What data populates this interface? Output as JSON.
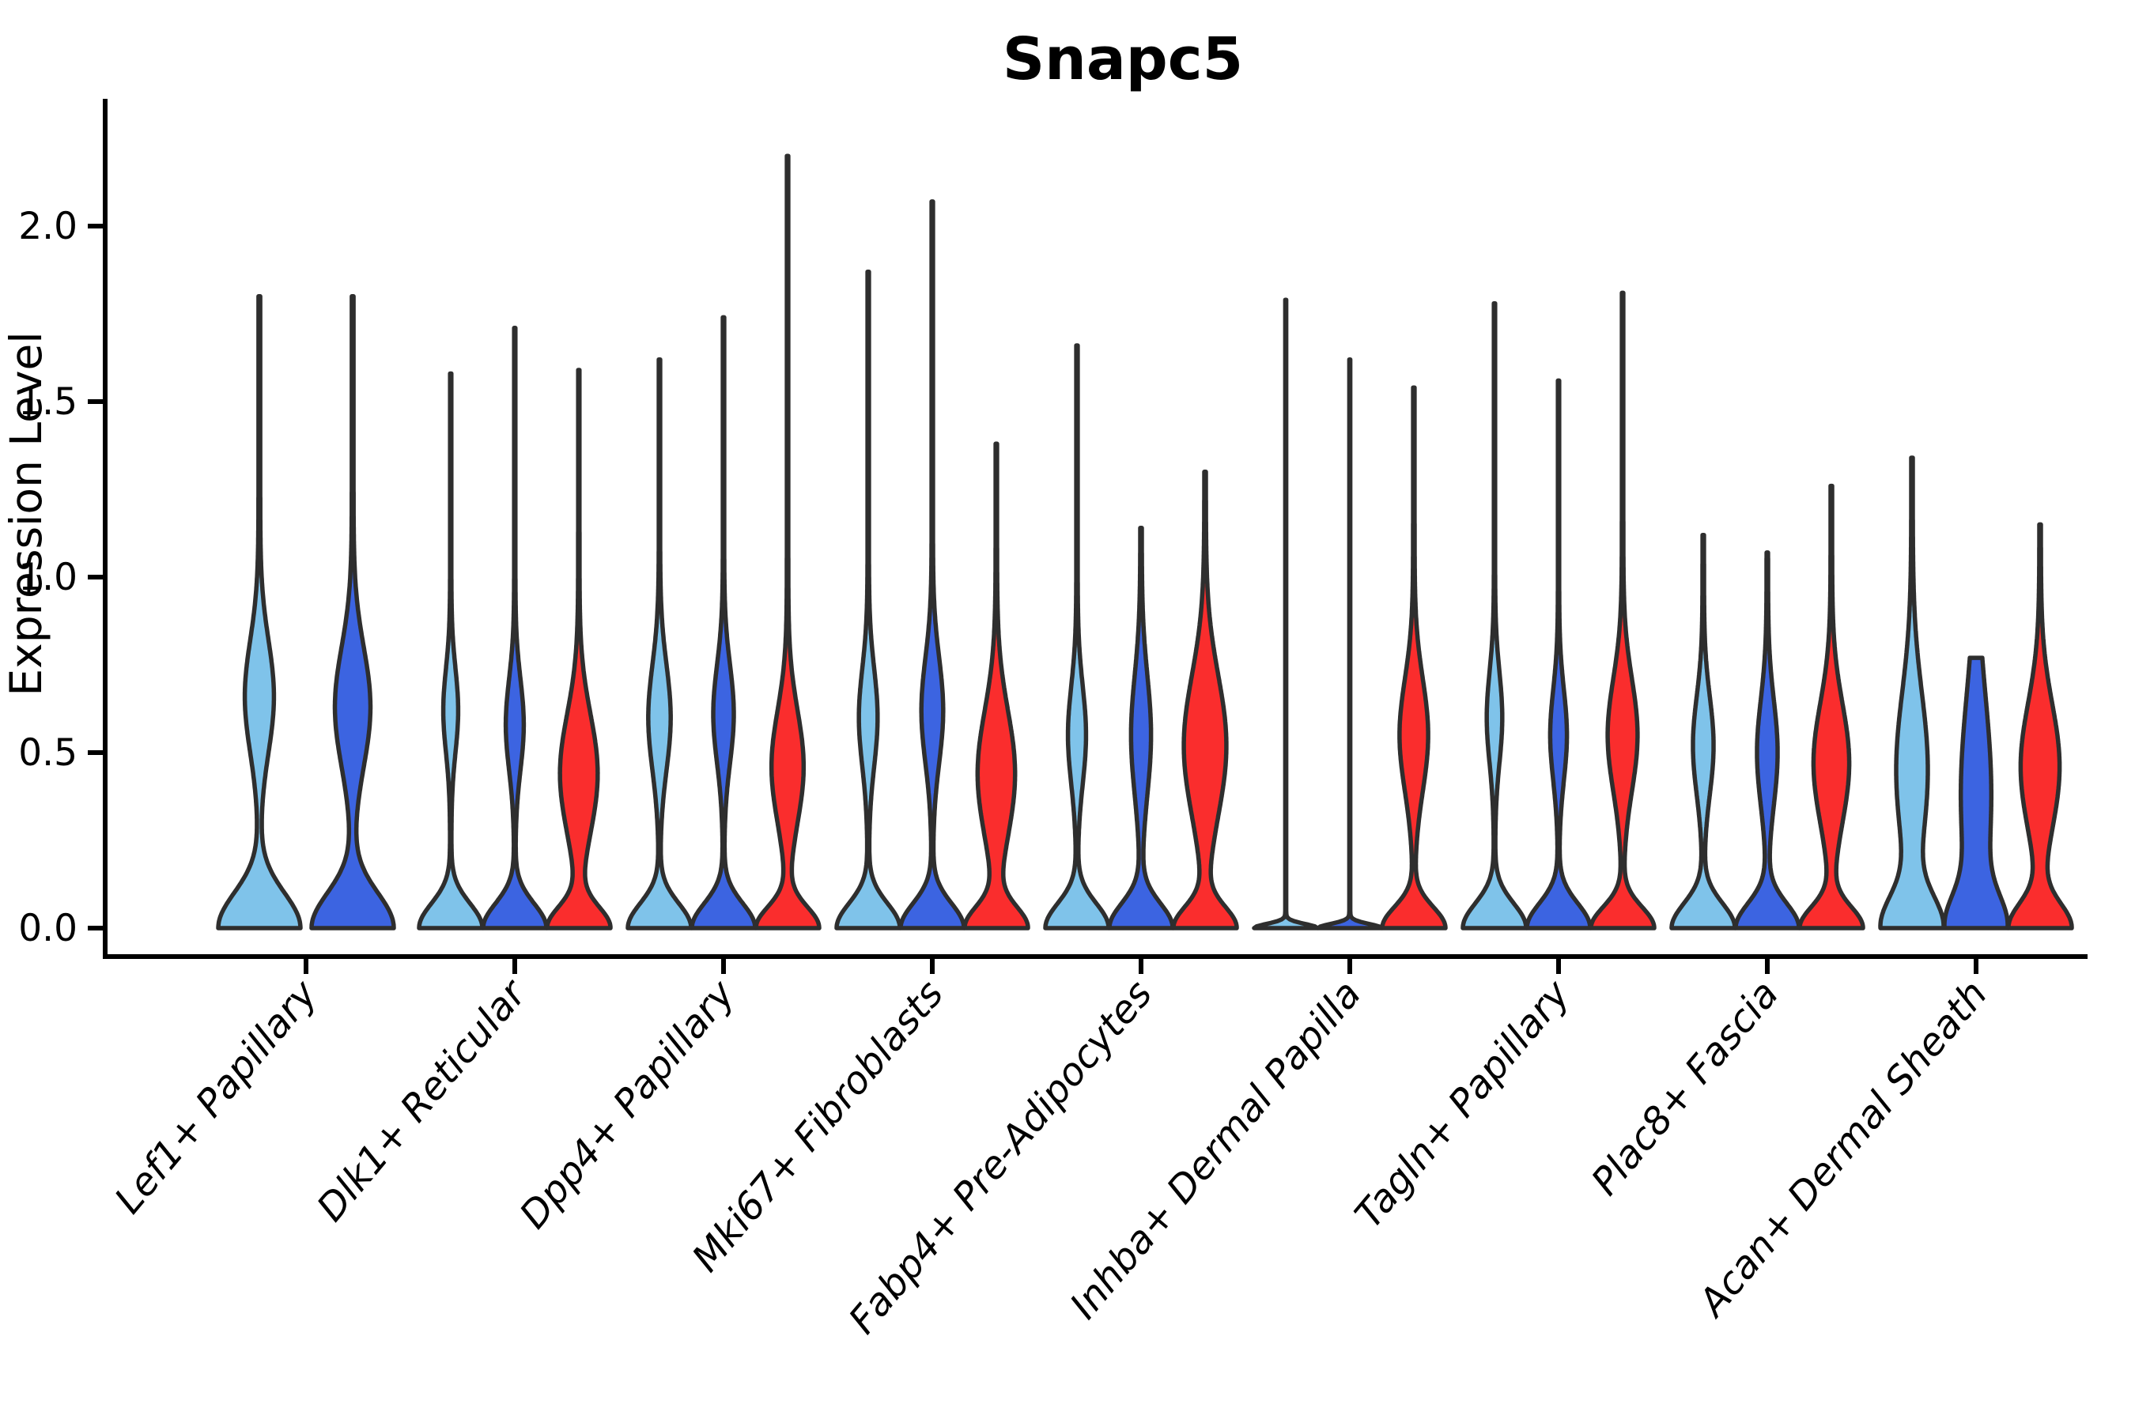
{
  "chart_data": {
    "type": "violin",
    "title": "Snapc5",
    "ylabel": "Expression Level",
    "xlabel": "",
    "ylim": [
      0,
      2.36
    ],
    "yticks": [
      0.0,
      0.5,
      1.0,
      1.5,
      2.0
    ],
    "ytick_labels": [
      "0.0",
      "0.5",
      "1.0",
      "1.5",
      "2.0"
    ],
    "grid": false,
    "legend": "none",
    "categories": [
      "Lef1+ Papillary",
      "Dlk1+ Reticular",
      "Dpp4+ Papillary",
      "Mki67+ Fibroblasts",
      "Fabp4+ Pre-Adipocytes",
      "Inhba+ Dermal Papilla",
      "Tagln+ Papillary",
      "Plac8+ Fascia",
      "Acan+ Dermal Sheath"
    ],
    "series": [
      {
        "name": "sky-blue-sample",
        "color": "#7FC3EA"
      },
      {
        "name": "royal-blue-sample",
        "color": "#3C64E1"
      },
      {
        "name": "red-sample",
        "color": "#FA2D2D"
      }
    ],
    "outline_color": "#2E2E2E",
    "groups": [
      {
        "category": "Lef1+ Papillary",
        "violins": [
          {
            "series": 0,
            "max_expression": 1.8,
            "kde": {
              "base_sigma": 0.1,
              "tail": 0.022,
              "bumps": [
                {
                  "center": 0.66,
                  "sigma": 0.16,
                  "weight": 0.34
                }
              ]
            }
          },
          {
            "series": 1,
            "max_expression": 1.8,
            "kde": {
              "base_sigma": 0.1,
              "tail": 0.022,
              "bumps": [
                {
                  "center": 0.63,
                  "sigma": 0.17,
                  "weight": 0.42
                }
              ]
            }
          }
        ]
      },
      {
        "category": "Dlk1+ Reticular",
        "violins": [
          {
            "series": 0,
            "max_expression": 1.58,
            "kde": {
              "base_sigma": 0.07,
              "tail": 0.02,
              "bumps": [
                {
                  "center": 0.62,
                  "sigma": 0.12,
                  "weight": 0.22
                }
              ]
            }
          },
          {
            "series": 1,
            "max_expression": 1.71,
            "kde": {
              "base_sigma": 0.07,
              "tail": 0.02,
              "bumps": [
                {
                  "center": 0.58,
                  "sigma": 0.13,
                  "weight": 0.27
                }
              ]
            }
          },
          {
            "series": 2,
            "max_expression": 1.59,
            "kde": {
              "base_sigma": 0.06,
              "tail": 0.022,
              "bumps": [
                {
                  "center": 0.44,
                  "sigma": 0.17,
                  "weight": 0.6
                }
              ]
            }
          }
        ]
      },
      {
        "category": "Dpp4+ Papillary",
        "violins": [
          {
            "series": 0,
            "max_expression": 1.62,
            "kde": {
              "base_sigma": 0.07,
              "tail": 0.022,
              "bumps": [
                {
                  "center": 0.6,
                  "sigma": 0.15,
                  "weight": 0.34
                }
              ]
            }
          },
          {
            "series": 1,
            "max_expression": 1.74,
            "kde": {
              "base_sigma": 0.07,
              "tail": 0.022,
              "bumps": [
                {
                  "center": 0.61,
                  "sigma": 0.14,
                  "weight": 0.31
                }
              ]
            }
          },
          {
            "series": 2,
            "max_expression": 2.2,
            "kde": {
              "base_sigma": 0.06,
              "tail": 0.024,
              "bumps": [
                {
                  "center": 0.46,
                  "sigma": 0.16,
                  "weight": 0.5
                }
              ]
            }
          }
        ]
      },
      {
        "category": "Mki67+ Fibroblasts",
        "violins": [
          {
            "series": 0,
            "max_expression": 1.87,
            "kde": {
              "base_sigma": 0.07,
              "tail": 0.022,
              "bumps": [
                {
                  "center": 0.6,
                  "sigma": 0.14,
                  "weight": 0.28
                }
              ]
            }
          },
          {
            "series": 1,
            "max_expression": 2.07,
            "kde": {
              "base_sigma": 0.07,
              "tail": 0.022,
              "bumps": [
                {
                  "center": 0.62,
                  "sigma": 0.15,
                  "weight": 0.33
                }
              ]
            }
          },
          {
            "series": 2,
            "max_expression": 1.38,
            "kde": {
              "base_sigma": 0.06,
              "tail": 0.024,
              "bumps": [
                {
                  "center": 0.44,
                  "sigma": 0.18,
                  "weight": 0.6
                }
              ]
            }
          }
        ]
      },
      {
        "category": "Fabp4+ Pre-Adipocytes",
        "violins": [
          {
            "series": 0,
            "max_expression": 1.66,
            "kde": {
              "base_sigma": 0.07,
              "tail": 0.022,
              "bumps": [
                {
                  "center": 0.55,
                  "sigma": 0.14,
                  "weight": 0.27
                }
              ]
            }
          },
          {
            "series": 1,
            "max_expression": 1.14,
            "kde": {
              "base_sigma": 0.07,
              "tail": 0.024,
              "bumps": [
                {
                  "center": 0.55,
                  "sigma": 0.17,
                  "weight": 0.3
                }
              ]
            }
          },
          {
            "series": 2,
            "max_expression": 1.3,
            "kde": {
              "base_sigma": 0.06,
              "tail": 0.026,
              "bumps": [
                {
                  "center": 0.52,
                  "sigma": 0.2,
                  "weight": 0.68
                }
              ]
            }
          }
        ]
      },
      {
        "category": "Inhba+ Dermal Papilla",
        "violins": [
          {
            "series": 0,
            "max_expression": 1.79,
            "kde": {
              "base_sigma": 0.012,
              "tail": 0.016,
              "bumps": []
            }
          },
          {
            "series": 1,
            "max_expression": 1.62,
            "kde": {
              "base_sigma": 0.012,
              "tail": 0.016,
              "bumps": []
            }
          },
          {
            "series": 2,
            "max_expression": 1.54,
            "kde": {
              "base_sigma": 0.06,
              "tail": 0.024,
              "bumps": [
                {
                  "center": 0.55,
                  "sigma": 0.16,
                  "weight": 0.44
                }
              ]
            }
          }
        ]
      },
      {
        "category": "Tagln+ Papillary",
        "violins": [
          {
            "series": 0,
            "max_expression": 1.78,
            "kde": {
              "base_sigma": 0.07,
              "tail": 0.02,
              "bumps": [
                {
                  "center": 0.6,
                  "sigma": 0.13,
                  "weight": 0.23
                }
              ]
            }
          },
          {
            "series": 1,
            "max_expression": 1.56,
            "kde": {
              "base_sigma": 0.07,
              "tail": 0.02,
              "bumps": [
                {
                  "center": 0.55,
                  "sigma": 0.13,
                  "weight": 0.25
                }
              ]
            }
          },
          {
            "series": 2,
            "max_expression": 1.81,
            "kde": {
              "base_sigma": 0.06,
              "tail": 0.024,
              "bumps": [
                {
                  "center": 0.55,
                  "sigma": 0.16,
                  "weight": 0.46
                }
              ]
            }
          }
        ]
      },
      {
        "category": "Plac8+ Fascia",
        "violins": [
          {
            "series": 0,
            "max_expression": 1.12,
            "kde": {
              "base_sigma": 0.07,
              "tail": 0.024,
              "bumps": [
                {
                  "center": 0.52,
                  "sigma": 0.14,
                  "weight": 0.31
                }
              ]
            }
          },
          {
            "series": 1,
            "max_expression": 1.07,
            "kde": {
              "base_sigma": 0.07,
              "tail": 0.024,
              "bumps": [
                {
                  "center": 0.5,
                  "sigma": 0.15,
                  "weight": 0.31
                }
              ]
            }
          },
          {
            "series": 2,
            "max_expression": 1.26,
            "kde": {
              "base_sigma": 0.06,
              "tail": 0.026,
              "bumps": [
                {
                  "center": 0.47,
                  "sigma": 0.17,
                  "weight": 0.56
                }
              ]
            }
          }
        ]
      },
      {
        "category": "Acan+ Dermal Sheath",
        "violins": [
          {
            "series": 0,
            "max_expression": 1.34,
            "kde": {
              "base_sigma": 0.09,
              "tail": 0.026,
              "bumps": [
                {
                  "center": 0.45,
                  "sigma": 0.22,
                  "weight": 0.52
                }
              ]
            }
          },
          {
            "series": 1,
            "max_expression": 0.77,
            "kde": {
              "base_sigma": 0.09,
              "tail": 0.03,
              "bumps": [
                {
                  "center": 0.38,
                  "sigma": 0.28,
                  "weight": 0.58
                }
              ]
            }
          },
          {
            "series": 2,
            "max_expression": 1.15,
            "kde": {
              "base_sigma": 0.07,
              "tail": 0.026,
              "bumps": [
                {
                  "center": 0.46,
                  "sigma": 0.18,
                  "weight": 0.62
                }
              ]
            }
          }
        ]
      }
    ]
  }
}
